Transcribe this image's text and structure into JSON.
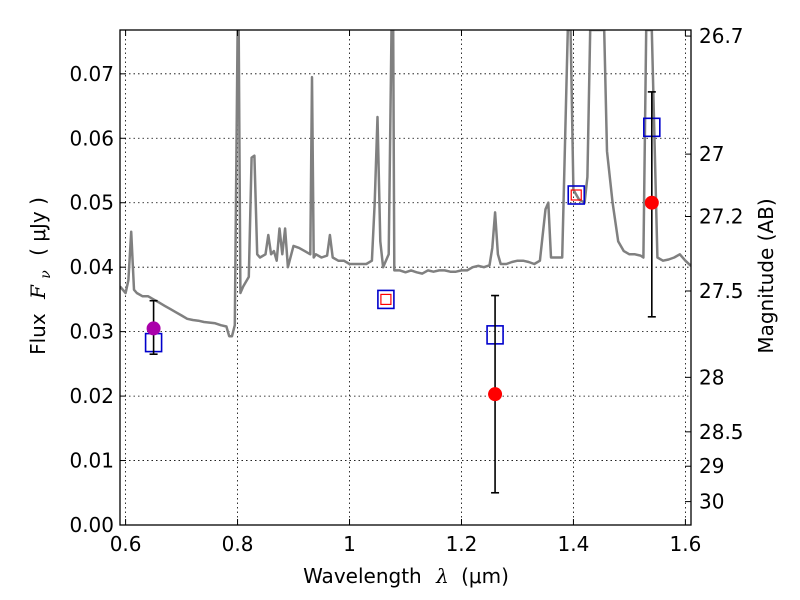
{
  "chart_data": {
    "type": "scatter",
    "title": "",
    "xlabel": "Wavelength",
    "xlabel_symbol": "λ",
    "xlabel_unit": "(μm)",
    "ylabel": "Flux",
    "ylabel_symbol": "F",
    "ylabel_subscript": "ν",
    "ylabel_unit": "( μJy )",
    "y2label": "Magnitude (AB)",
    "xlim": [
      0.59,
      1.61
    ],
    "ylim": [
      0.0,
      0.0768
    ],
    "grid": true,
    "xticks": [
      0.6,
      0.8,
      1.0,
      1.2,
      1.4,
      1.6
    ],
    "xtick_labels": [
      "0.6",
      "0.8",
      "1",
      "1.2",
      "1.4",
      "1.6"
    ],
    "yticks": [
      0.0,
      0.01,
      0.02,
      0.03,
      0.04,
      0.05,
      0.06,
      0.07
    ],
    "ytick_labels": [
      "0.00",
      "0.01",
      "0.02",
      "0.03",
      "0.04",
      "0.05",
      "0.06",
      "0.07"
    ],
    "y2ticks": [
      26.7,
      27,
      27.2,
      27.5,
      28,
      28.5,
      29,
      30
    ],
    "y2tick_labels": [
      "26.7",
      "27",
      "27.2",
      "27.5",
      "28",
      "28.5",
      "29",
      "30"
    ],
    "series": [
      {
        "kind": "line",
        "color": "#808080",
        "x": [
          0.59,
          0.6,
          0.605,
          0.61,
          0.615,
          0.62,
          0.63,
          0.64,
          0.65,
          0.66,
          0.67,
          0.68,
          0.69,
          0.7,
          0.71,
          0.72,
          0.73,
          0.74,
          0.75,
          0.76,
          0.77,
          0.78,
          0.785,
          0.79,
          0.795,
          0.8,
          0.802,
          0.805,
          0.81,
          0.82,
          0.825,
          0.83,
          0.835,
          0.84,
          0.85,
          0.855,
          0.86,
          0.865,
          0.87,
          0.875,
          0.88,
          0.885,
          0.89,
          0.9,
          0.91,
          0.92,
          0.93,
          0.933,
          0.936,
          0.94,
          0.95,
          0.96,
          0.965,
          0.97,
          0.98,
          0.99,
          1.0,
          1.01,
          1.02,
          1.03,
          1.04,
          1.045,
          1.05,
          1.055,
          1.06,
          1.07,
          1.075,
          1.078,
          1.08,
          1.09,
          1.1,
          1.11,
          1.12,
          1.13,
          1.14,
          1.15,
          1.16,
          1.17,
          1.18,
          1.19,
          1.2,
          1.21,
          1.22,
          1.23,
          1.24,
          1.25,
          1.255,
          1.26,
          1.265,
          1.27,
          1.28,
          1.29,
          1.3,
          1.31,
          1.32,
          1.33,
          1.34,
          1.35,
          1.355,
          1.36,
          1.37,
          1.38,
          1.39,
          1.395,
          1.4,
          1.41,
          1.42,
          1.425,
          1.43,
          1.44,
          1.45,
          1.455,
          1.46,
          1.47,
          1.48,
          1.49,
          1.5,
          1.51,
          1.52,
          1.525,
          1.53,
          1.54,
          1.55,
          1.56,
          1.57,
          1.58,
          1.59,
          1.6,
          1.61
        ],
        "y": [
          0.037,
          0.036,
          0.038,
          0.0455,
          0.0365,
          0.036,
          0.0355,
          0.0355,
          0.035,
          0.0345,
          0.034,
          0.0335,
          0.033,
          0.0325,
          0.032,
          0.0318,
          0.0317,
          0.0315,
          0.0314,
          0.0313,
          0.031,
          0.0308,
          0.0293,
          0.0293,
          0.031,
          0.0768,
          0.0768,
          0.036,
          0.037,
          0.0385,
          0.057,
          0.0573,
          0.042,
          0.0415,
          0.042,
          0.045,
          0.042,
          0.0425,
          0.041,
          0.046,
          0.042,
          0.046,
          0.04,
          0.0433,
          0.043,
          0.0425,
          0.042,
          0.0695,
          0.0415,
          0.042,
          0.0415,
          0.0418,
          0.045,
          0.0415,
          0.041,
          0.041,
          0.0405,
          0.0405,
          0.0405,
          0.0405,
          0.041,
          0.05,
          0.0633,
          0.044,
          0.04,
          0.042,
          0.0768,
          0.0768,
          0.0395,
          0.0395,
          0.0392,
          0.0395,
          0.0392,
          0.039,
          0.0395,
          0.0393,
          0.0395,
          0.0395,
          0.0393,
          0.0393,
          0.0395,
          0.0395,
          0.04,
          0.0402,
          0.04,
          0.0403,
          0.043,
          0.0485,
          0.042,
          0.0405,
          0.0405,
          0.0408,
          0.041,
          0.041,
          0.0408,
          0.0405,
          0.041,
          0.049,
          0.05,
          0.0415,
          0.0415,
          0.0415,
          0.0768,
          0.0768,
          0.052,
          0.0505,
          0.05,
          0.054,
          0.0768,
          0.0768,
          0.0768,
          0.0768,
          0.058,
          0.05,
          0.044,
          0.0425,
          0.042,
          0.042,
          0.0418,
          0.0415,
          0.0768,
          0.0768,
          0.0415,
          0.041,
          0.0412,
          0.0415,
          0.042,
          0.041,
          0.0402
        ]
      },
      {
        "kind": "model-squares",
        "color": "#0000cc",
        "x": [
          0.65,
          1.065,
          1.26,
          1.405,
          1.54
        ],
        "y": [
          0.0283,
          0.035,
          0.0295,
          0.0512,
          0.0617
        ]
      },
      {
        "kind": "observed-points",
        "color": "#ff0000",
        "x": [
          1.26,
          1.405,
          1.065,
          1.54
        ],
        "y": [
          0.0203,
          0.0512,
          0.035,
          0.05
        ],
        "marker": [
          "circle",
          "small-square",
          "small-square",
          "circle"
        ],
        "yerr_low": [
          0.0153,
          null,
          null,
          0.0177
        ],
        "yerr_high": [
          0.0153,
          null,
          null,
          0.0172
        ]
      },
      {
        "kind": "observed-points",
        "color": "#aa00aa",
        "x": [
          0.65
        ],
        "y": [
          0.0305
        ],
        "marker": [
          "circle"
        ],
        "yerr_low": [
          0.004
        ],
        "yerr_high": [
          0.0043
        ]
      }
    ]
  }
}
